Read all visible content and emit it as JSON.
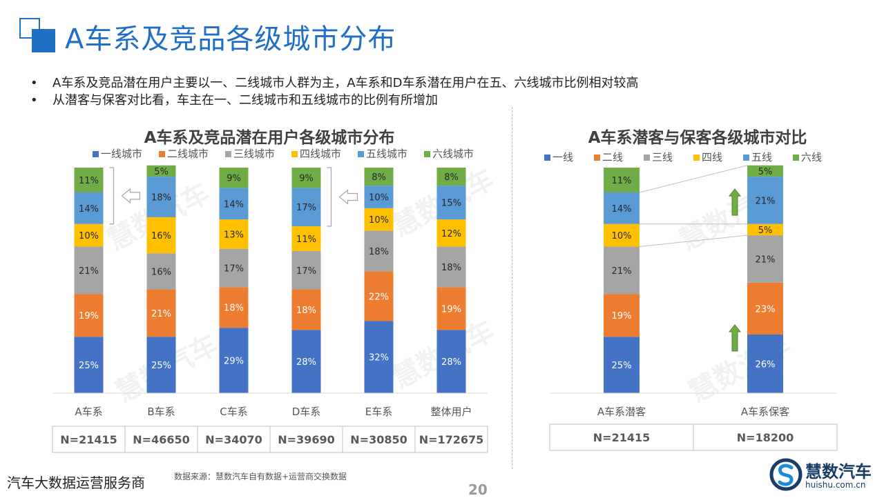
{
  "page": {
    "title": "A车系及竞品各级城市分布",
    "bullets": [
      "A车系及竞品潜在用户主要以一、二线城市人群为主，A车系和D车系潜在用户在五、六线城市比例相对较高",
      "从潜客与保客对比看，车主在一、二线城市和五线城市的比例有所增加"
    ],
    "footer_left": "汽车大数据运营服务商",
    "source": "数据来源：慧数汽车自有数据+运营商交换数据",
    "page_number": "20",
    "brand_name": "慧数汽车",
    "brand_url": "huishu.com.cn",
    "watermark": "慧数汽车"
  },
  "chart_data": [
    {
      "type": "bar",
      "stacked": true,
      "title": "A车系及竞品潜在用户各级城市分布",
      "legend_position": "top",
      "categories": [
        "A车系",
        "B车系",
        "C车系",
        "D车系",
        "E车系",
        "整体用户"
      ],
      "series": [
        {
          "name": "一线城市",
          "color": "#4472c4",
          "values": [
            25,
            25,
            29,
            28,
            32,
            28
          ]
        },
        {
          "name": "二线城市",
          "color": "#ed7d31",
          "values": [
            19,
            21,
            18,
            18,
            22,
            19
          ]
        },
        {
          "name": "三线城市",
          "color": "#a5a5a5",
          "values": [
            21,
            16,
            17,
            17,
            18,
            18
          ]
        },
        {
          "name": "四线城市",
          "color": "#ffc000",
          "values": [
            10,
            16,
            13,
            11,
            10,
            12
          ]
        },
        {
          "name": "五线城市",
          "color": "#5b9bd5",
          "values": [
            14,
            18,
            14,
            17,
            10,
            15
          ]
        },
        {
          "name": "六线城市",
          "color": "#70ad47",
          "values": [
            11,
            5,
            9,
            9,
            8,
            8
          ]
        }
      ],
      "label_suffix": "%",
      "sample_sizes": [
        "N=21415",
        "N=46650",
        "N=34070",
        "N=39690",
        "N=30850",
        "N=172675"
      ]
    },
    {
      "type": "bar",
      "stacked": true,
      "title": "A车系潜客与保客各级城市对比",
      "legend_position": "top",
      "categories": [
        "A车系潜客",
        "A车系保客"
      ],
      "series": [
        {
          "name": "一线",
          "color": "#4472c4",
          "values": [
            25,
            26
          ]
        },
        {
          "name": "二线",
          "color": "#ed7d31",
          "values": [
            19,
            23
          ]
        },
        {
          "name": "三线",
          "color": "#a5a5a5",
          "values": [
            21,
            21
          ]
        },
        {
          "name": "四线",
          "color": "#ffc000",
          "values": [
            10,
            5
          ]
        },
        {
          "name": "五线",
          "color": "#5b9bd5",
          "values": [
            14,
            21
          ]
        },
        {
          "name": "六线",
          "color": "#70ad47",
          "values": [
            11,
            5
          ]
        }
      ],
      "label_suffix": "%",
      "sample_sizes": [
        "N=21415",
        "N=18200"
      ]
    }
  ]
}
